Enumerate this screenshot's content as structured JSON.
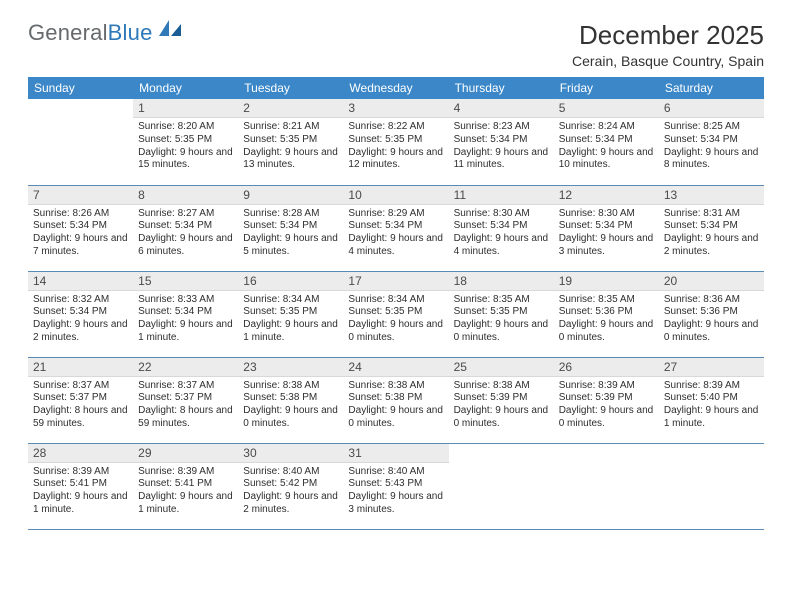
{
  "brand": {
    "part1": "General",
    "part2": "Blue"
  },
  "colors": {
    "header_bg": "#3b87c8",
    "header_text": "#ffffff",
    "daynum_bg": "#ececec",
    "row_border": "#5a8bb5",
    "logo_gray": "#666a6d",
    "logo_blue": "#2f79b9"
  },
  "title": "December 2025",
  "location": "Cerain, Basque Country, Spain",
  "days_of_week": [
    "Sunday",
    "Monday",
    "Tuesday",
    "Wednesday",
    "Thursday",
    "Friday",
    "Saturday"
  ],
  "cells": [
    {
      "n": "",
      "t": ""
    },
    {
      "n": "1",
      "t": "Sunrise: 8:20 AM\nSunset: 5:35 PM\nDaylight: 9 hours and 15 minutes."
    },
    {
      "n": "2",
      "t": "Sunrise: 8:21 AM\nSunset: 5:35 PM\nDaylight: 9 hours and 13 minutes."
    },
    {
      "n": "3",
      "t": "Sunrise: 8:22 AM\nSunset: 5:35 PM\nDaylight: 9 hours and 12 minutes."
    },
    {
      "n": "4",
      "t": "Sunrise: 8:23 AM\nSunset: 5:34 PM\nDaylight: 9 hours and 11 minutes."
    },
    {
      "n": "5",
      "t": "Sunrise: 8:24 AM\nSunset: 5:34 PM\nDaylight: 9 hours and 10 minutes."
    },
    {
      "n": "6",
      "t": "Sunrise: 8:25 AM\nSunset: 5:34 PM\nDaylight: 9 hours and 8 minutes."
    },
    {
      "n": "7",
      "t": "Sunrise: 8:26 AM\nSunset: 5:34 PM\nDaylight: 9 hours and 7 minutes."
    },
    {
      "n": "8",
      "t": "Sunrise: 8:27 AM\nSunset: 5:34 PM\nDaylight: 9 hours and 6 minutes."
    },
    {
      "n": "9",
      "t": "Sunrise: 8:28 AM\nSunset: 5:34 PM\nDaylight: 9 hours and 5 minutes."
    },
    {
      "n": "10",
      "t": "Sunrise: 8:29 AM\nSunset: 5:34 PM\nDaylight: 9 hours and 4 minutes."
    },
    {
      "n": "11",
      "t": "Sunrise: 8:30 AM\nSunset: 5:34 PM\nDaylight: 9 hours and 4 minutes."
    },
    {
      "n": "12",
      "t": "Sunrise: 8:30 AM\nSunset: 5:34 PM\nDaylight: 9 hours and 3 minutes."
    },
    {
      "n": "13",
      "t": "Sunrise: 8:31 AM\nSunset: 5:34 PM\nDaylight: 9 hours and 2 minutes."
    },
    {
      "n": "14",
      "t": "Sunrise: 8:32 AM\nSunset: 5:34 PM\nDaylight: 9 hours and 2 minutes."
    },
    {
      "n": "15",
      "t": "Sunrise: 8:33 AM\nSunset: 5:34 PM\nDaylight: 9 hours and 1 minute."
    },
    {
      "n": "16",
      "t": "Sunrise: 8:34 AM\nSunset: 5:35 PM\nDaylight: 9 hours and 1 minute."
    },
    {
      "n": "17",
      "t": "Sunrise: 8:34 AM\nSunset: 5:35 PM\nDaylight: 9 hours and 0 minutes."
    },
    {
      "n": "18",
      "t": "Sunrise: 8:35 AM\nSunset: 5:35 PM\nDaylight: 9 hours and 0 minutes."
    },
    {
      "n": "19",
      "t": "Sunrise: 8:35 AM\nSunset: 5:36 PM\nDaylight: 9 hours and 0 minutes."
    },
    {
      "n": "20",
      "t": "Sunrise: 8:36 AM\nSunset: 5:36 PM\nDaylight: 9 hours and 0 minutes."
    },
    {
      "n": "21",
      "t": "Sunrise: 8:37 AM\nSunset: 5:37 PM\nDaylight: 8 hours and 59 minutes."
    },
    {
      "n": "22",
      "t": "Sunrise: 8:37 AM\nSunset: 5:37 PM\nDaylight: 8 hours and 59 minutes."
    },
    {
      "n": "23",
      "t": "Sunrise: 8:38 AM\nSunset: 5:38 PM\nDaylight: 9 hours and 0 minutes."
    },
    {
      "n": "24",
      "t": "Sunrise: 8:38 AM\nSunset: 5:38 PM\nDaylight: 9 hours and 0 minutes."
    },
    {
      "n": "25",
      "t": "Sunrise: 8:38 AM\nSunset: 5:39 PM\nDaylight: 9 hours and 0 minutes."
    },
    {
      "n": "26",
      "t": "Sunrise: 8:39 AM\nSunset: 5:39 PM\nDaylight: 9 hours and 0 minutes."
    },
    {
      "n": "27",
      "t": "Sunrise: 8:39 AM\nSunset: 5:40 PM\nDaylight: 9 hours and 1 minute."
    },
    {
      "n": "28",
      "t": "Sunrise: 8:39 AM\nSunset: 5:41 PM\nDaylight: 9 hours and 1 minute."
    },
    {
      "n": "29",
      "t": "Sunrise: 8:39 AM\nSunset: 5:41 PM\nDaylight: 9 hours and 1 minute."
    },
    {
      "n": "30",
      "t": "Sunrise: 8:40 AM\nSunset: 5:42 PM\nDaylight: 9 hours and 2 minutes."
    },
    {
      "n": "31",
      "t": "Sunrise: 8:40 AM\nSunset: 5:43 PM\nDaylight: 9 hours and 3 minutes."
    },
    {
      "n": "",
      "t": ""
    },
    {
      "n": "",
      "t": ""
    },
    {
      "n": "",
      "t": ""
    }
  ]
}
